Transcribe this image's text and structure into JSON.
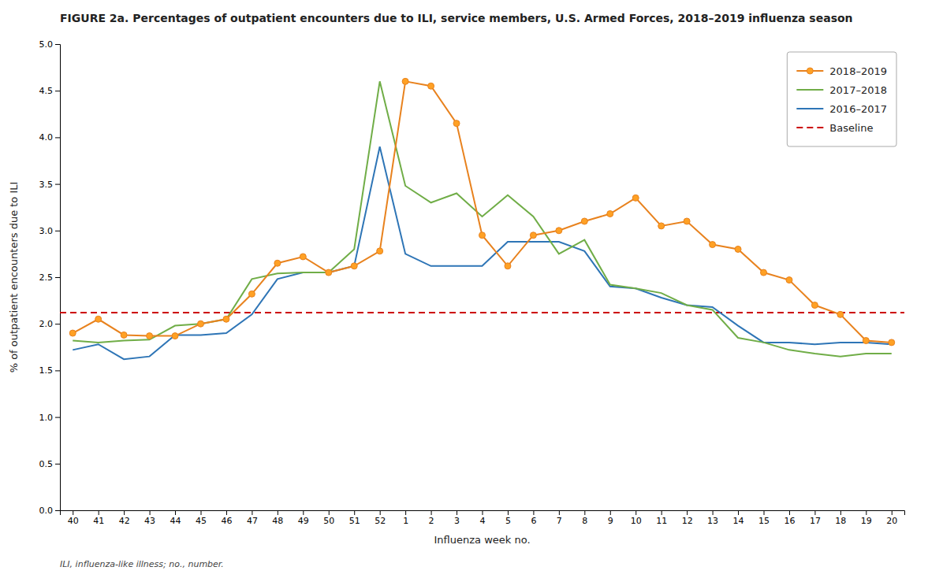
{
  "chart_data": {
    "type": "line",
    "title": "FIGURE 2a. Percentages of outpatient encounters due to ILI, service members, U.S. Armed Forces, 2018–2019 influenza season",
    "xlabel": "Influenza week no.",
    "ylabel": "% of outpatient encounters due to ILI",
    "footnote": "ILI, influenza-like illness; no., number.",
    "categories": [
      "40",
      "41",
      "42",
      "43",
      "44",
      "45",
      "46",
      "47",
      "48",
      "49",
      "50",
      "51",
      "52",
      "1",
      "2",
      "3",
      "4",
      "5",
      "6",
      "7",
      "8",
      "9",
      "10",
      "11",
      "12",
      "13",
      "14",
      "15",
      "16",
      "17",
      "18",
      "19",
      "20"
    ],
    "series": [
      {
        "name": "2018–2019",
        "color": "#E8821E",
        "marker": "circle",
        "line_style": "solid",
        "values": [
          1.9,
          2.05,
          1.88,
          1.87,
          1.87,
          2.0,
          2.05,
          2.32,
          2.65,
          2.72,
          2.55,
          2.62,
          2.78,
          4.6,
          4.55,
          4.15,
          2.95,
          2.62,
          2.95,
          3.0,
          3.1,
          3.18,
          3.35,
          3.05,
          3.1,
          2.85,
          2.8,
          2.55,
          2.47,
          2.2,
          2.1,
          1.82,
          1.8
        ]
      },
      {
        "name": "2017–2018",
        "color": "#70AD47",
        "marker": "none",
        "line_style": "solid",
        "values": [
          1.82,
          1.8,
          1.82,
          1.83,
          1.98,
          2.0,
          2.05,
          2.48,
          2.54,
          2.55,
          2.55,
          2.8,
          4.6,
          3.48,
          3.3,
          3.4,
          3.15,
          3.38,
          3.15,
          2.75,
          2.9,
          2.42,
          2.38,
          2.33,
          2.2,
          2.15,
          1.85,
          1.8,
          1.72,
          1.68,
          1.65,
          1.68,
          1.68
        ]
      },
      {
        "name": "2016–2017",
        "color": "#2E75B6",
        "marker": "none",
        "line_style": "solid",
        "values": [
          1.72,
          1.78,
          1.62,
          1.65,
          1.88,
          1.88,
          1.9,
          2.1,
          2.48,
          2.55,
          2.55,
          2.62,
          3.9,
          2.75,
          2.62,
          2.62,
          2.62,
          2.88,
          2.88,
          2.88,
          2.78,
          2.4,
          2.38,
          2.28,
          2.2,
          2.18,
          1.98,
          1.8,
          1.8,
          1.78,
          1.8,
          1.8,
          1.78
        ]
      }
    ],
    "baseline": {
      "name": "Baseline",
      "value": 2.12,
      "color": "#CC0000",
      "line_style": "dashed"
    },
    "ylim": [
      0.0,
      5.0
    ],
    "yticks": [
      {
        "value": 0.0,
        "label": "0.0"
      },
      0.5,
      {
        "value": 1.0,
        "label": "1.0"
      },
      1.5,
      {
        "value": 2.0,
        "label": "2.0"
      },
      2.5,
      {
        "value": 3.0,
        "label": "3.0"
      },
      3.5,
      {
        "value": 4.0,
        "label": "4.0"
      },
      4.5,
      {
        "value": 5.0,
        "label": "5.0"
      }
    ],
    "grid": false,
    "legend": "upper right"
  }
}
